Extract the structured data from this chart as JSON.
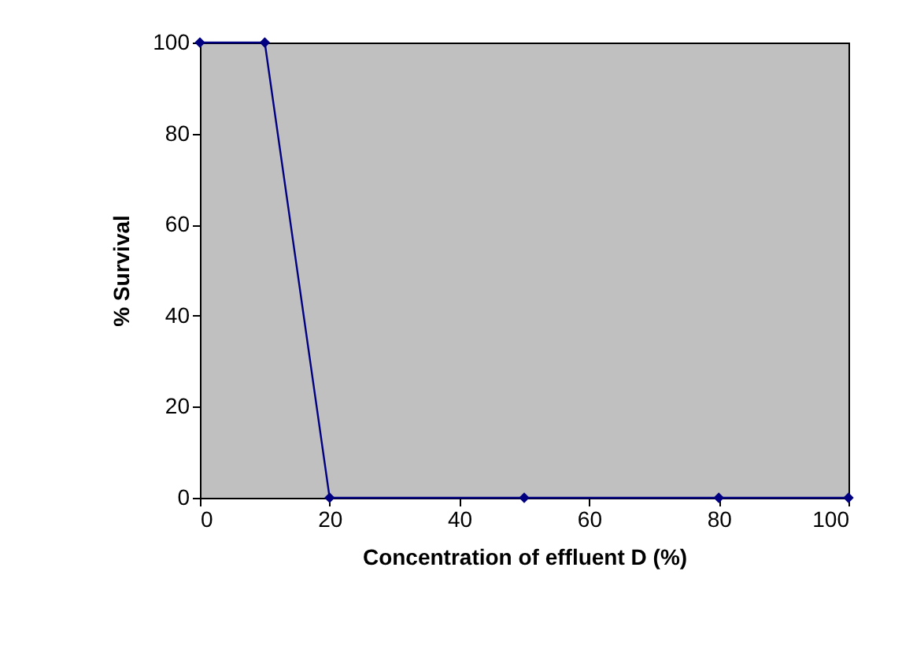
{
  "chart_data": {
    "type": "line",
    "xlabel": "Concentration of effluent D (%)",
    "ylabel": "% Survival",
    "x": [
      0,
      10,
      20,
      50,
      80,
      100
    ],
    "series": [
      {
        "color": "#000080",
        "values": [
          100,
          100,
          0,
          0,
          0,
          0
        ]
      }
    ],
    "xlim": [
      0,
      100
    ],
    "xticks": [
      0,
      20,
      40,
      60,
      80,
      100
    ],
    "ylim": [
      0,
      100
    ],
    "yticks": [
      0,
      20,
      40,
      60,
      80,
      100
    ],
    "grid": false,
    "marker": "diamond",
    "line_style": "solid"
  }
}
